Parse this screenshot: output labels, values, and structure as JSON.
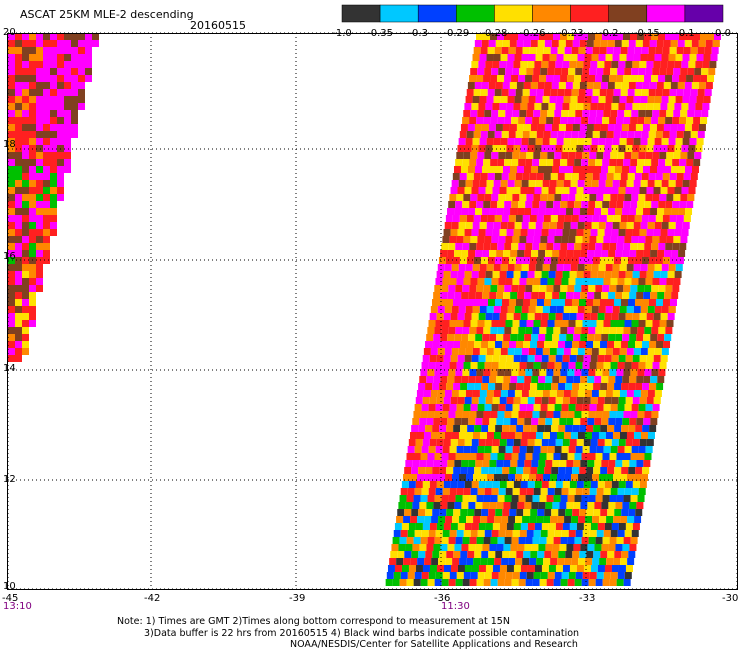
{
  "header": {
    "title": "ASCAT 25KM MLE-2 descending",
    "date": "20160515"
  },
  "legend": {
    "colors": [
      "#333333",
      "#00c8ff",
      "#0040ff",
      "#00c000",
      "#ffe000",
      "#ff8800",
      "#ff2020",
      "#804020",
      "#ff00ff",
      "#6600aa"
    ],
    "labels": [
      "-1.0",
      "-0.35",
      "-0.3",
      "-0.29",
      "-0.28",
      "-0.26",
      "-0.23",
      "-0.2",
      "-0.15",
      "-0.1",
      "0.0"
    ]
  },
  "axes": {
    "lat_labels": [
      "20",
      "18",
      "16",
      "14",
      "12",
      "10"
    ],
    "lon_labels": [
      "-45",
      "-42",
      "-39",
      "-36",
      "-33",
      "-30"
    ],
    "time_labels": [
      "13:10",
      "11:30"
    ]
  },
  "notes": {
    "line1": "Note: 1) Times are GMT 2)Times along bottom correspond to measurement at 15N",
    "line2": "3)Data buffer is 22 hrs from 20160515 4) Black wind barbs indicate possible contamination",
    "line3": "NOAA/NESDIS/Center for Satellite Applications and Research"
  }
}
